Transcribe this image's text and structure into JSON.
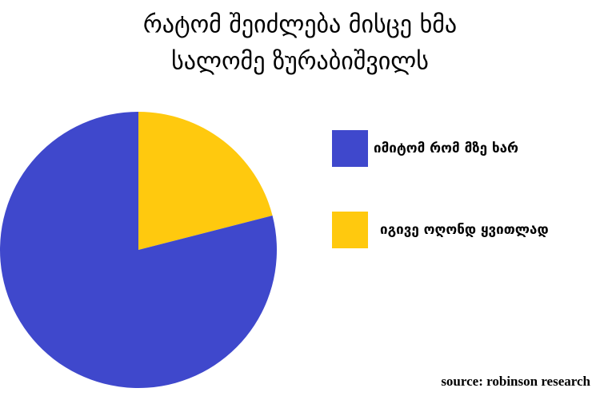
{
  "chart_data": {
    "type": "pie",
    "title": [
      "რატომ შეიძლება მისცე ხმა",
      "სალომე ზურაბიშვილს"
    ],
    "series": [
      {
        "name": "იგივე ოღონდ ყვითლად",
        "color": "#ffc90e",
        "values": [
          21
        ]
      },
      {
        "name": "იმიტომ რომ მზე ხარ",
        "color": "#3f48cc",
        "values": [
          79
        ]
      }
    ],
    "source": "source: robinson research"
  }
}
